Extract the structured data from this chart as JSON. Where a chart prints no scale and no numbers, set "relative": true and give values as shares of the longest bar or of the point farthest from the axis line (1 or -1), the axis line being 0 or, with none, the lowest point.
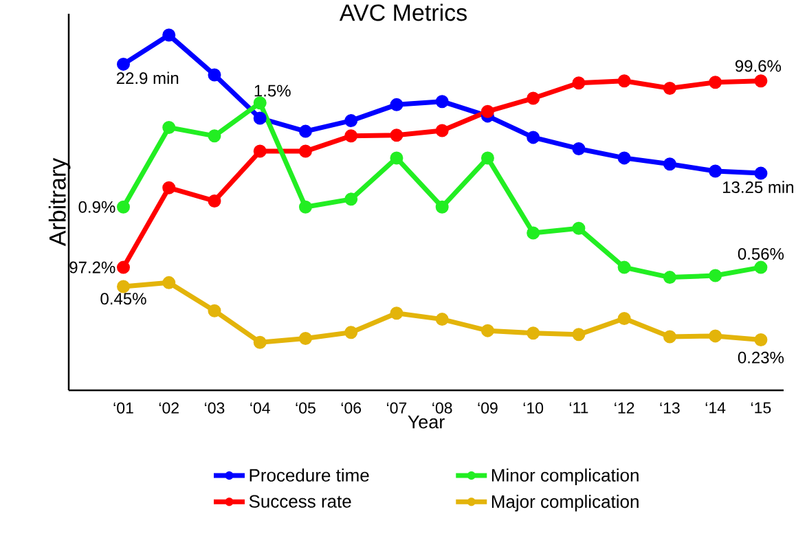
{
  "chart_data": {
    "type": "line",
    "title": "AVC Metrics",
    "xlabel": "Year",
    "ylabel": "Arbitrary",
    "relative": true,
    "marker": "circle",
    "line_style": "solid",
    "legend": "bottom",
    "categories": [
      "‘01",
      "‘02",
      "‘03",
      "‘04",
      "‘05",
      "‘06",
      "‘07",
      "‘08",
      "‘09",
      "‘10",
      "‘11",
      "‘12",
      "‘13",
      "‘14",
      "‘15"
    ],
    "series": [
      {
        "name": "Procedure time",
        "color": "#0000ff",
        "values": [
          0.918,
          1.0,
          0.888,
          0.766,
          0.729,
          0.759,
          0.804,
          0.813,
          0.772,
          0.712,
          0.68,
          0.654,
          0.637,
          0.617,
          0.611
        ]
      },
      {
        "name": "Success rate",
        "color": "#ff0000",
        "values": [
          0.346,
          0.57,
          0.533,
          0.673,
          0.673,
          0.716,
          0.718,
          0.731,
          0.785,
          0.822,
          0.865,
          0.871,
          0.85,
          0.867,
          0.871
        ]
      },
      {
        "name": "Minor complication",
        "color": "#22ee22",
        "values": [
          0.516,
          0.74,
          0.716,
          0.809,
          0.516,
          0.538,
          0.654,
          0.516,
          0.654,
          0.443,
          0.456,
          0.346,
          0.318,
          0.323,
          0.346
        ]
      },
      {
        "name": "Major complication",
        "color": "#e3b40a",
        "values": [
          0.292,
          0.303,
          0.224,
          0.135,
          0.146,
          0.163,
          0.217,
          0.2,
          0.168,
          0.161,
          0.157,
          0.202,
          0.151,
          0.153,
          0.142
        ]
      }
    ],
    "annotations": [
      {
        "text": "22.9 min",
        "x": "‘01",
        "y": 0.918
      },
      {
        "text": "1.5%",
        "x": "‘04",
        "y": 0.809
      },
      {
        "text": "0.9%",
        "x": "‘01",
        "y": 0.516
      },
      {
        "text": "97.2%",
        "x": "‘01",
        "y": 0.346
      },
      {
        "text": "0.45%",
        "x": "‘01",
        "y": 0.292
      },
      {
        "text": "99.6%",
        "x": "‘15",
        "y": 0.871
      },
      {
        "text": "13.25 min",
        "x": "‘15",
        "y": 0.611
      },
      {
        "text": "0.56%",
        "x": "‘15",
        "y": 0.346
      },
      {
        "text": "0.23%",
        "x": "‘15",
        "y": 0.142
      }
    ]
  }
}
